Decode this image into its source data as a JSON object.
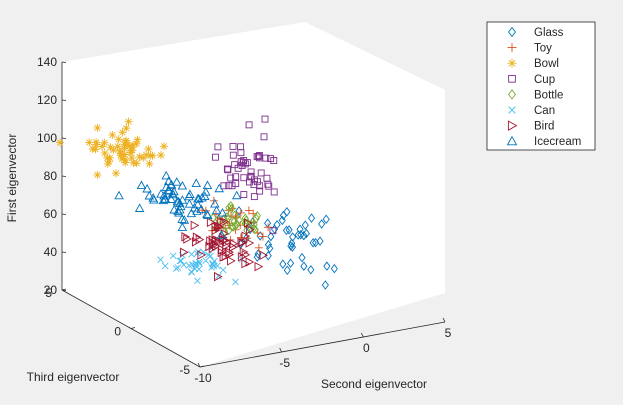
{
  "chart_data": {
    "type": "scatter",
    "projection": "3d",
    "grid": false,
    "legend_position": "top-right",
    "axes": {
      "x": {
        "label": "Second eigenvector",
        "range": [
          -10,
          5
        ],
        "ticks": [
          "-10",
          "-5",
          "0",
          "5"
        ]
      },
      "y": {
        "label": "Third eigenvector",
        "range": [
          -5,
          5
        ],
        "ticks": [
          "-5",
          "0",
          "5"
        ]
      },
      "z": {
        "label": "First eigenvector",
        "range": [
          20,
          140
        ],
        "ticks": [
          "20",
          "40",
          "60",
          "80",
          "100",
          "120",
          "140"
        ]
      }
    },
    "series": [
      {
        "name": "Glass",
        "marker": "diamond",
        "color": "#0072BD",
        "center": [
          -1.5,
          -1.0,
          58
        ],
        "spread": [
          2.0,
          2.2,
          13
        ],
        "count": 45
      },
      {
        "name": "Toy",
        "marker": "plus",
        "color": "#D95319",
        "center": [
          -3.5,
          0.0,
          64
        ],
        "spread": [
          1.3,
          1.3,
          7
        ],
        "count": 30
      },
      {
        "name": "Bowl",
        "marker": "asterisk",
        "color": "#EDB120",
        "center": [
          -8.5,
          2.5,
          102
        ],
        "spread": [
          1.6,
          1.5,
          7
        ],
        "count": 55
      },
      {
        "name": "Cup",
        "marker": "square",
        "color": "#7E2F8E",
        "center": [
          -2.0,
          0.5,
          88
        ],
        "spread": [
          1.4,
          1.5,
          13
        ],
        "count": 50
      },
      {
        "name": "Bottle",
        "marker": "diamond",
        "color": "#77AC30",
        "center": [
          -3.2,
          0.3,
          64
        ],
        "spread": [
          0.9,
          0.9,
          5
        ],
        "count": 30
      },
      {
        "name": "Can",
        "marker": "x",
        "color": "#4DBEEE",
        "center": [
          -7.5,
          -1.5,
          57
        ],
        "spread": [
          1.4,
          1.4,
          5
        ],
        "count": 40
      },
      {
        "name": "Bird",
        "marker": "triangle-right",
        "color": "#A2142F",
        "center": [
          -5.0,
          -0.5,
          58
        ],
        "spread": [
          1.6,
          1.6,
          6
        ],
        "count": 55
      },
      {
        "name": "Icecream",
        "marker": "triangle-up",
        "color": "#0072BD",
        "center": [
          -6.5,
          0.8,
          80
        ],
        "spread": [
          1.6,
          1.6,
          6
        ],
        "count": 60
      }
    ]
  }
}
